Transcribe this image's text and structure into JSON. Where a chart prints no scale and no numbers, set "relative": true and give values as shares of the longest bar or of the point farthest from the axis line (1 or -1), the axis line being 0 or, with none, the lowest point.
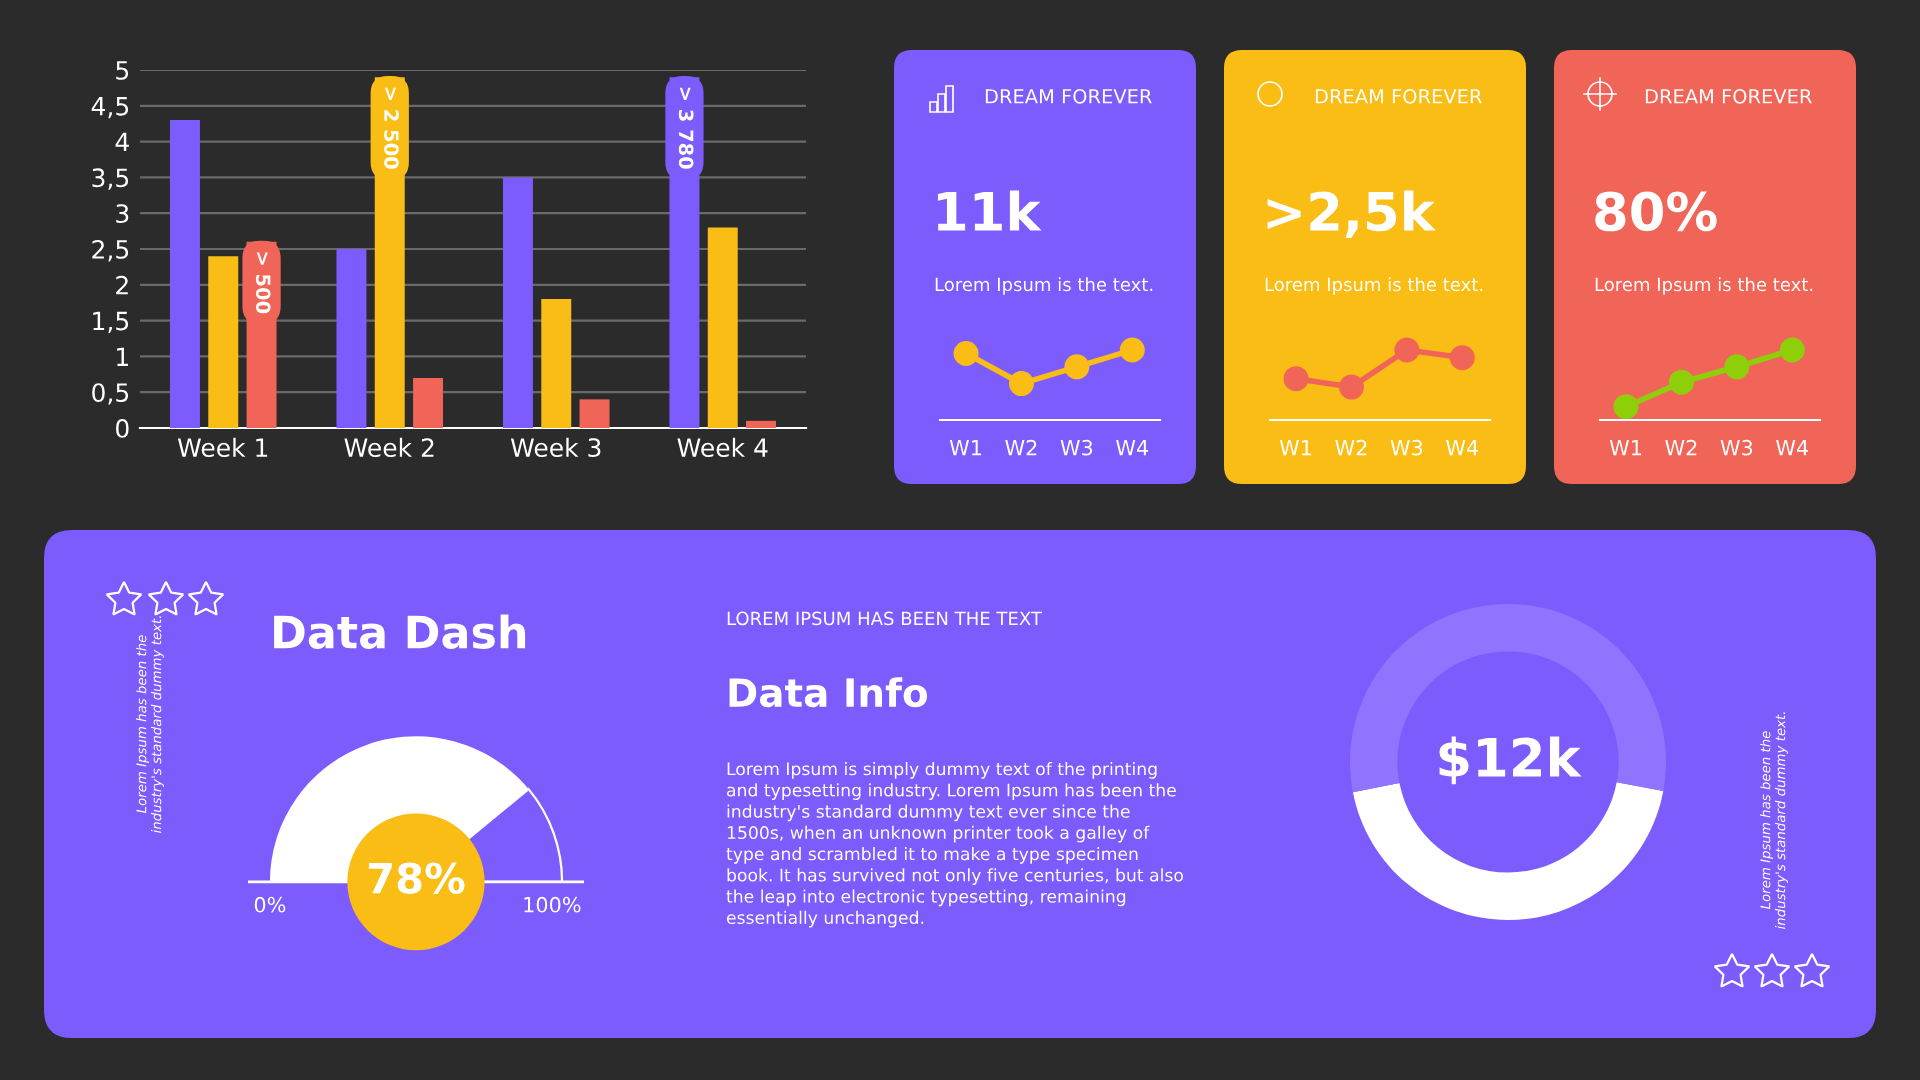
{
  "chart_data": [
    {
      "type": "bar",
      "categories": [
        "Week 1",
        "Week 2",
        "Week 3",
        "Week 4"
      ],
      "ylim": [
        0,
        5
      ],
      "yticks": [
        0,
        {
          "value": 0.5,
          "label": "0,5"
        },
        1,
        {
          "value": 1.5,
          "label": "1,5"
        },
        2,
        {
          "value": 2.5,
          "label": "2,5"
        },
        3,
        {
          "value": 3.5,
          "label": "3,5"
        },
        4,
        {
          "value": 4.5,
          "label": "4,5"
        },
        5
      ],
      "grid": "y",
      "series": [
        {
          "color": "#7c5cfc",
          "values": [
            4.3,
            2.5,
            3.5,
            4.9
          ],
          "value_labels": [
            null,
            null,
            null,
            "> 3 780"
          ]
        },
        {
          "color": "#f9bd15",
          "values": [
            2.4,
            4.9,
            1.8,
            2.8
          ],
          "value_labels": [
            null,
            "> 2 500",
            null,
            null
          ]
        },
        {
          "color": "#f06557",
          "values": [
            2.6,
            0.7,
            0.4,
            0.1
          ],
          "value_labels": [
            "> 500",
            null,
            null,
            null
          ]
        }
      ]
    },
    {
      "type": "line",
      "title": "DREAM FOREVER",
      "annotations": [
        "11k",
        "Lorem Ipsum is the text."
      ],
      "categories": [
        "W1",
        "W2",
        "W3",
        "W4"
      ],
      "relative": true,
      "marker": "circle",
      "series": [
        {
          "color": "#f9bd15",
          "values": [
            0.95,
            0.52,
            0.76,
            1
          ]
        }
      ]
    },
    {
      "type": "line",
      "title": "DREAM FOREVER",
      "annotations": [
        ">2,5k",
        "Lorem Ipsum is the text."
      ],
      "categories": [
        "W1",
        "W2",
        "W3",
        "W4"
      ],
      "relative": true,
      "marker": "circle",
      "series": [
        {
          "color": "#f06557",
          "values": [
            0.59,
            0.47,
            1,
            0.89
          ]
        }
      ]
    },
    {
      "type": "line",
      "title": "DREAM FOREVER",
      "annotations": [
        "80%",
        "Lorem Ipsum is the text."
      ],
      "categories": [
        "W1",
        "W2",
        "W3",
        "W4"
      ],
      "relative": true,
      "marker": "circle",
      "series": [
        {
          "color": "#8fcf0a",
          "values": [
            0.19,
            0.54,
            0.76,
            1
          ]
        }
      ]
    },
    {
      "type": "donut",
      "title": "Data Dash",
      "categories": [
        null,
        null
      ],
      "values": [
        78,
        22
      ],
      "colors": [
        "#ffffff",
        "#7c5cfc"
      ],
      "value_labels": [
        "78%",
        null
      ],
      "annotations": [
        "0%",
        "100%",
        "Lorem Ipsum has been the\nindustry's standard dummy text."
      ]
    },
    {
      "type": "other",
      "subtitle": "LOREM IPSUM HAS BEEN THE TEXT",
      "title": "Data Info",
      "annotations": [
        "Lorem Ipsum is simply dummy text of the printing\nand typesetting industry. Lorem Ipsum has been the\nindustry's standard dummy text ever since the\n1500s, when an unknown printer took a galley of\ntype and scrambled it to make a type specimen\nbook. It has survived not only five centuries, but also\nthe leap into electronic typesetting, remaining\nessentially unchanged."
      ]
    },
    {
      "type": "donut",
      "categories": [
        null,
        null
      ],
      "values": [
        44,
        56
      ],
      "colors": [
        "#ffffff",
        "#9174fd"
      ],
      "annotations": [
        "$12k",
        "Lorem Ipsum has been the\nindustry's standard dummy text."
      ]
    }
  ]
}
